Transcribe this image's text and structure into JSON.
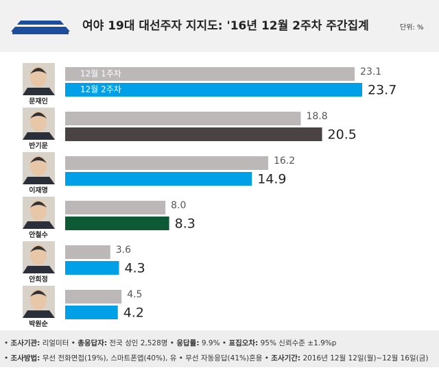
{
  "chart_data": {
    "type": "bar",
    "title": "여야 19대 대선주자 지지도: '16년 12월 2주차 주간집계",
    "unit_note": "단위: %",
    "categories": [
      "문재인",
      "반기문",
      "이재명",
      "안철수",
      "안희정",
      "박원순"
    ],
    "series": [
      {
        "name": "12월 1주차",
        "color": "#bdb8b8",
        "values": [
          23.1,
          18.8,
          16.2,
          8.0,
          3.6,
          4.5
        ],
        "value_labels": [
          "23.1",
          "18.8",
          "16.2",
          "8.0",
          "3.6",
          "4.5"
        ]
      },
      {
        "name": "12월 2주차",
        "colors": [
          "#00a0e9",
          "#4a4343",
          "#00a0e9",
          "#0f5a36",
          "#00a0e9",
          "#00a0e9"
        ],
        "values": [
          23.7,
          20.5,
          14.9,
          8.3,
          4.3,
          4.2
        ]
      }
    ],
    "footer": [
      [
        {
          "label": "조사기관:",
          "text": "리얼미터"
        },
        {
          "label": "총응답자:",
          "text": "전국 성인 2,528명"
        },
        {
          "label": "응답률:",
          "text": "9.9%"
        },
        {
          "label": "표집오차:",
          "text": "95% 신뢰수준 ±1.9%p"
        }
      ],
      [
        {
          "label": "조사방법:",
          "text": "무선 전화면접(19%), 스마트폰앱(40%), 유 • 무선 자동응답(41%)혼용"
        },
        {
          "label": "조사기간:",
          "text": "2016년 12월 12일(월)~12월 16일(금)"
        }
      ]
    ]
  }
}
